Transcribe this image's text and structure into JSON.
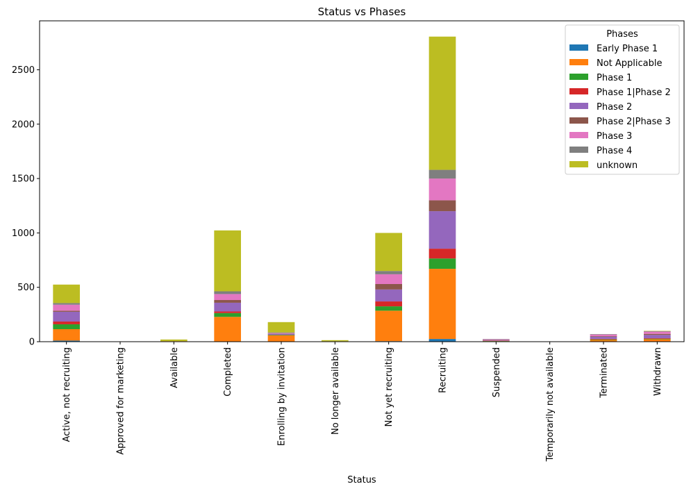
{
  "chart_data": {
    "type": "bar",
    "stacked": true,
    "title": "Status vs Phases",
    "xlabel": "Status",
    "ylabel": "",
    "ylim": [
      0,
      2950
    ],
    "yticks": [
      0,
      500,
      1000,
      1500,
      2000,
      2500
    ],
    "grid": false,
    "legend": {
      "title": "Phases",
      "placement": "top-right"
    },
    "categories": [
      "Active, not recruiting",
      "Approved for marketing",
      "Available",
      "Completed",
      "Enrolling by invitation",
      "No longer available",
      "Not yet recruiting",
      "Recruiting",
      "Suspended",
      "Temporarily not available",
      "Terminated",
      "Withdrawn"
    ],
    "series": [
      {
        "name": "Early Phase 1",
        "color": "#1f77b4",
        "values": [
          10,
          0,
          0,
          3,
          2,
          0,
          5,
          25,
          0,
          0,
          1,
          2
        ]
      },
      {
        "name": "Not Applicable",
        "color": "#ff7f0e",
        "values": [
          105,
          0,
          5,
          225,
          55,
          4,
          280,
          645,
          5,
          0,
          15,
          20
        ]
      },
      {
        "name": "Phase 1",
        "color": "#2ca02c",
        "values": [
          45,
          0,
          0,
          35,
          5,
          0,
          40,
          95,
          2,
          0,
          5,
          5
        ]
      },
      {
        "name": "Phase 1|Phase 2",
        "color": "#d62728",
        "values": [
          25,
          0,
          0,
          15,
          2,
          0,
          45,
          90,
          3,
          0,
          5,
          5
        ]
      },
      {
        "name": "Phase 2",
        "color": "#9467bd",
        "values": [
          90,
          0,
          0,
          80,
          8,
          0,
          110,
          345,
          5,
          0,
          20,
          30
        ]
      },
      {
        "name": "Phase 2|Phase 3",
        "color": "#8c564b",
        "values": [
          10,
          0,
          0,
          25,
          2,
          0,
          50,
          100,
          2,
          0,
          5,
          10
        ]
      },
      {
        "name": "Phase 3",
        "color": "#e377c2",
        "values": [
          55,
          0,
          0,
          55,
          5,
          0,
          90,
          200,
          5,
          0,
          15,
          20
        ]
      },
      {
        "name": "Phase 4",
        "color": "#7f7f7f",
        "values": [
          15,
          0,
          0,
          25,
          6,
          0,
          30,
          80,
          3,
          0,
          4,
          5
        ]
      },
      {
        "name": "unknown",
        "color": "#bcbd22",
        "values": [
          170,
          1,
          15,
          560,
          95,
          10,
          350,
          1225,
          0,
          0,
          0,
          3
        ]
      }
    ]
  }
}
